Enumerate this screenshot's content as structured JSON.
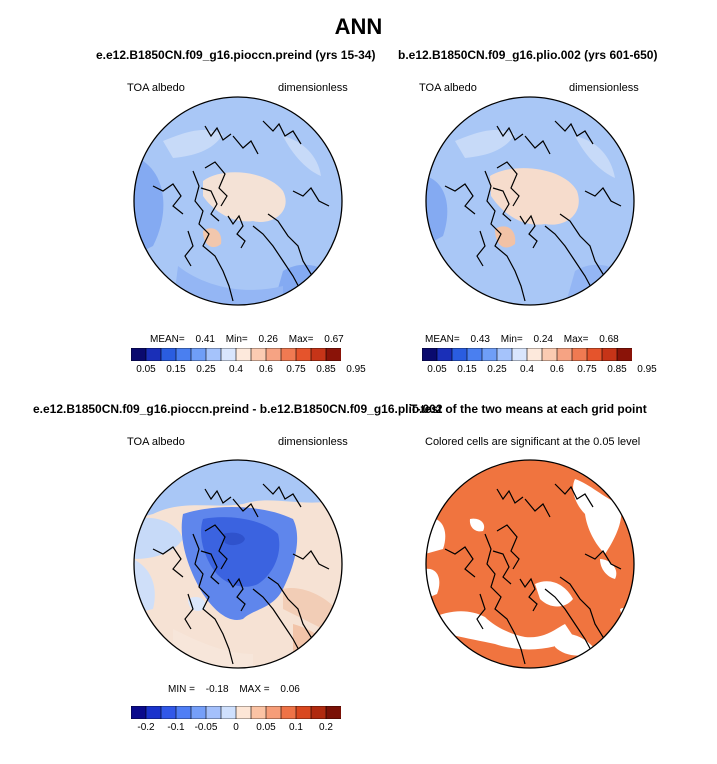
{
  "figure": {
    "title": "ANN"
  },
  "panels": [
    {
      "title": "e.e12.B1850CN.f09_g16.pioccn.preind (yrs 15-34)",
      "left_label": "TOA albedo",
      "right_label": "dimensionless",
      "stats": {
        "mean_label": "MEAN=",
        "mean": "0.41",
        "min_label": "Min=",
        "min": "0.26",
        "max_label": "Max=",
        "max": "0.67"
      }
    },
    {
      "title": "b.e12.B1850CN.f09_g16.plio.002 (yrs 601-650)",
      "left_label": "TOA albedo",
      "right_label": "dimensionless",
      "stats": {
        "mean_label": "MEAN=",
        "mean": "0.43",
        "min_label": "Min=",
        "min": "0.24",
        "max_label": "Max=",
        "max": "0.68"
      }
    },
    {
      "title": "e.e12.B1850CN.f09_g16.pioccn.preind - b.e12.B1850CN.f09_g16.plio.002",
      "left_label": "TOA albedo",
      "right_label": "dimensionless",
      "stats": {
        "min_label": "MIN =",
        "min": "-0.18",
        "max_label": "MAX =",
        "max": "0.06"
      }
    },
    {
      "title": "T-test of the two means at each grid point",
      "left_label": "Colored cells are significant at the 0.05 level"
    }
  ],
  "colorbars": {
    "abs_colors": [
      "#0a0a6e",
      "#1a2fb8",
      "#2a5de0",
      "#4a7ff0",
      "#6f9ef7",
      "#a5c3fb",
      "#d9e6fd",
      "#fde9dc",
      "#fbcbb2",
      "#f6a383",
      "#f07a52",
      "#e5542c",
      "#c63418",
      "#8a1308"
    ],
    "abs_labels": [
      "0.05",
      "0.15",
      "0.25",
      "0.4",
      "0.6",
      "0.75",
      "0.85",
      "0.95"
    ],
    "diff_colors": [
      "#0a0a8c",
      "#1a33cc",
      "#3158e8",
      "#4f7ef5",
      "#759ff9",
      "#a4c0fb",
      "#cfe0fd",
      "#fde6d6",
      "#fbc3a4",
      "#f69d78",
      "#ee7347",
      "#d9481f",
      "#b02a0f",
      "#7a1106"
    ],
    "diff_labels": [
      "-0.2",
      "-0.1",
      "-0.05",
      "0",
      "0.05",
      "0.1",
      "0.2"
    ]
  },
  "map_colors": {
    "ocean_light": "#a9c7f6",
    "ocean_mid": "#84aaf2",
    "pale_peach": "#f6e0d2",
    "pale_blue": "#c7daf8",
    "deep_blue": "#3b63e0",
    "mid_blue": "#5f86ec",
    "peach_diff": "#f5d8c4",
    "sig_orange": "#f0743f"
  },
  "chart_data": [
    {
      "type": "heatmap",
      "title": "e.e12.B1850CN.f09_g16.pioccn.preind (yrs 15-34)",
      "variable": "TOA albedo",
      "units": "dimensionless",
      "mean": 0.41,
      "min": 0.26,
      "max": 0.67,
      "levels": [
        0.05,
        0.1,
        0.15,
        0.2,
        0.25,
        0.3,
        0.4,
        0.5,
        0.6,
        0.7,
        0.75,
        0.8,
        0.85,
        0.9,
        0.95
      ]
    },
    {
      "type": "heatmap",
      "title": "b.e12.B1850CN.f09_g16.plio.002 (yrs 601-650)",
      "variable": "TOA albedo",
      "units": "dimensionless",
      "mean": 0.43,
      "min": 0.24,
      "max": 0.68,
      "levels": [
        0.05,
        0.1,
        0.15,
        0.2,
        0.25,
        0.3,
        0.4,
        0.5,
        0.6,
        0.7,
        0.75,
        0.8,
        0.85,
        0.9,
        0.95
      ]
    },
    {
      "type": "heatmap",
      "title": "e.e12.B1850CN.f09_g16.pioccn.preind - b.e12.B1850CN.f09_g16.plio.002",
      "variable": "TOA albedo",
      "units": "dimensionless",
      "min": -0.18,
      "max": 0.06
    },
    {
      "type": "heatmap",
      "title": "T-test of the two means at each grid point",
      "significance_level": 0.05
    }
  ]
}
